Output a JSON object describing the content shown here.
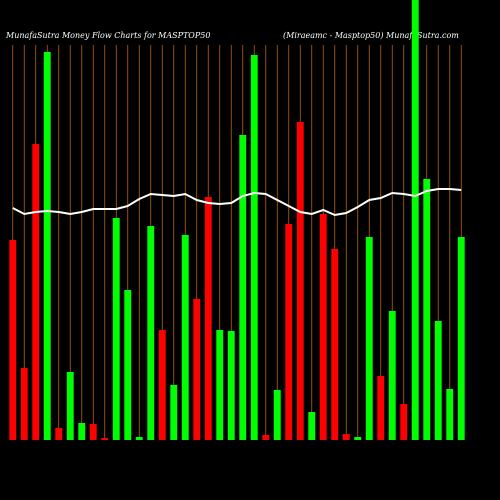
{
  "chart_data": {
    "type": "bar",
    "title": "MunafaSutra  Money Flow  Charts for MASPTOP50",
    "subtitle": "(Miraeamc -  Masptop50) MunafaSutra.com",
    "categories": [
      null,
      null,
      null,
      null,
      null,
      null,
      null,
      null,
      null,
      null,
      null,
      null,
      null,
      null,
      null,
      null,
      null,
      null,
      null,
      null,
      null,
      null,
      null,
      null,
      null,
      null,
      null,
      null,
      null,
      null,
      null,
      null,
      null,
      null,
      null,
      null,
      null,
      null,
      null,
      null
    ],
    "values": [
      200,
      72,
      296,
      388,
      12,
      68,
      17,
      16,
      2,
      222,
      150,
      3,
      214,
      110,
      55,
      205,
      141,
      243,
      110,
      109,
      305,
      385,
      5,
      50,
      216,
      318,
      28,
      226,
      191,
      6,
      3,
      203,
      64,
      129,
      36,
      440,
      261,
      119,
      51,
      203
    ],
    "colors": [
      "#ff0000",
      "#ff0000",
      "#ff0000",
      "#00ff00",
      "#ff0000",
      "#00ff00",
      "#00ff00",
      "#ff0000",
      "#ff0000",
      "#00ff00",
      "#00ff00",
      "#00ff00",
      "#00ff00",
      "#ff0000",
      "#00ff00",
      "#00ff00",
      "#ff0000",
      "#ff0000",
      "#00ff00",
      "#00ff00",
      "#00ff00",
      "#00ff00",
      "#ff0000",
      "#00ff00",
      "#ff0000",
      "#ff0000",
      "#00ff00",
      "#ff0000",
      "#ff0000",
      "#ff0000",
      "#00ff00",
      "#00ff00",
      "#ff0000",
      "#00ff00",
      "#ff0000",
      "#00ff00",
      "#00ff00",
      "#00ff00",
      "#00ff00",
      "#00ff00"
    ],
    "line": {
      "color": "#ffffff",
      "values": [
        232,
        226,
        228,
        229,
        228,
        226,
        228,
        231,
        231,
        231,
        234,
        241,
        246,
        245,
        244,
        246,
        240,
        237,
        236,
        237,
        244,
        247,
        246,
        240,
        234,
        228,
        226,
        230,
        225,
        227,
        233,
        240,
        242,
        247,
        246,
        244,
        249,
        251,
        251,
        250
      ]
    },
    "ylim": [
      0,
      440
    ],
    "grid_color": "#b8650a"
  }
}
